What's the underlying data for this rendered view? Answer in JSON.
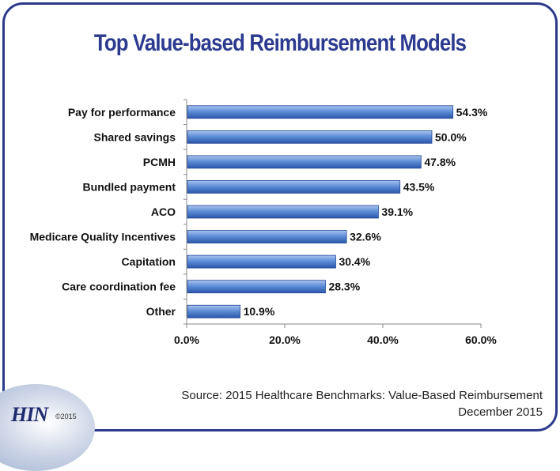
{
  "title": "Top Value-based Reimbursement Models",
  "source_line1": "Source: 2015 Healthcare Benchmarks: Value-Based Reimbursement",
  "source_line2": "December 2015",
  "logo_text": "HIN",
  "copyright": "©2015",
  "colors": {
    "title": "#2c3a8f",
    "frame": "#2b3a8c",
    "bar_light": "#8fb0e6",
    "bar_dark": "#2f5fb8",
    "axis": "#888888"
  },
  "chart_data": {
    "type": "bar",
    "orientation": "horizontal",
    "title": "Top Value-based Reimbursement Models",
    "categories": [
      "Pay for performance",
      "Shared savings",
      "PCMH",
      "Bundled payment",
      "ACO",
      "Medicare Quality Incentives",
      "Capitation",
      "Care coordination fee",
      "Other"
    ],
    "values": [
      54.3,
      50.0,
      47.8,
      43.5,
      39.1,
      32.6,
      30.4,
      28.3,
      10.9
    ],
    "value_labels": [
      "54.3%",
      "50.0%",
      "47.8%",
      "43.5%",
      "39.1%",
      "32.6%",
      "30.4%",
      "28.3%",
      "10.9%"
    ],
    "xlim": [
      0,
      60
    ],
    "xticks": [
      0,
      20,
      40,
      60
    ],
    "xtick_labels": [
      "0.0%",
      "20.0%",
      "40.0%",
      "60.0%"
    ],
    "xlabel": "",
    "ylabel": "",
    "grid": false,
    "legend": "none"
  }
}
